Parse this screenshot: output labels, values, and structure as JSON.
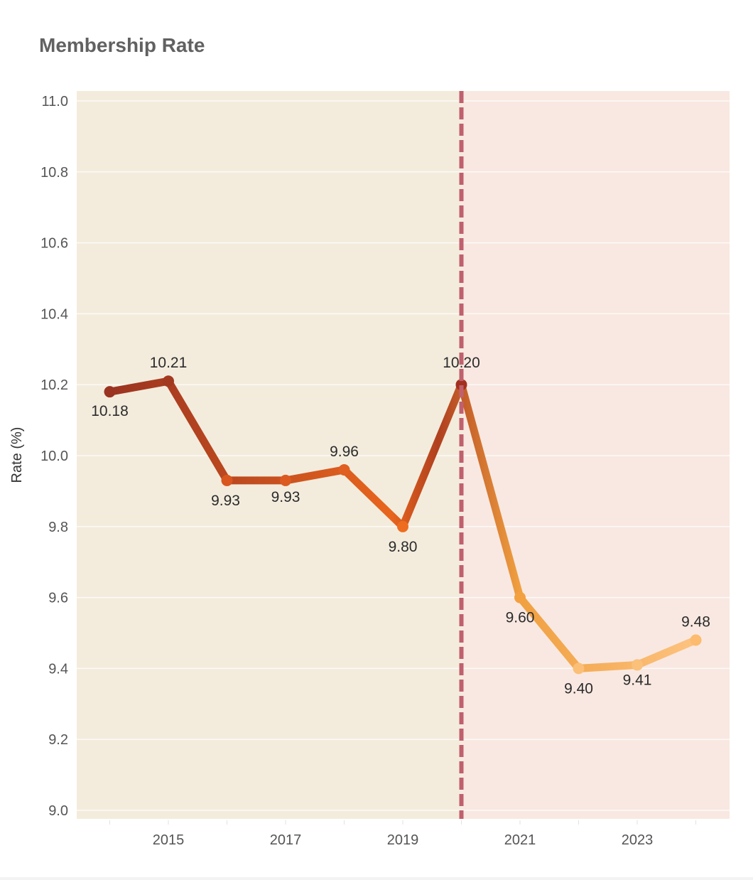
{
  "title": "Membership Rate",
  "chart_data": {
    "type": "line",
    "title": "Membership Rate",
    "xlabel": "",
    "ylabel": "Rate (%)",
    "x": [
      2014,
      2015,
      2016,
      2017,
      2018,
      2019,
      2020,
      2021,
      2022,
      2023,
      2024
    ],
    "series": [
      {
        "name": "Membership Rate",
        "values": [
          10.18,
          10.21,
          9.93,
          9.93,
          9.96,
          9.8,
          10.2,
          9.6,
          9.4,
          9.41,
          9.48
        ]
      }
    ],
    "data_labels": [
      "10.18",
      "10.21",
      "9.93",
      "9.93",
      "9.96",
      "9.80",
      "10.20",
      "9.60",
      "9.40",
      "9.41",
      "9.48"
    ],
    "ylim": [
      9.0,
      11.0
    ],
    "xlim": [
      2013.55,
      2024.6
    ],
    "y_ticks": [
      "9.0",
      "9.2",
      "9.4",
      "9.6",
      "9.8",
      "10.0",
      "10.2",
      "10.4",
      "10.6",
      "10.8",
      "11.0"
    ],
    "x_ticks": [
      "2015",
      "2017",
      "2019",
      "2021",
      "2023"
    ],
    "grid": true,
    "legend": null,
    "annotations": [
      {
        "type": "vline",
        "x": 2020,
        "style": "dashed",
        "color": "#c0606e"
      },
      {
        "type": "region",
        "from": 2013.55,
        "to": 2020,
        "color": "#f3ecdd"
      },
      {
        "type": "region",
        "from": 2020,
        "to": 2024.6,
        "color": "#f8e8e1"
      }
    ]
  },
  "colors": {
    "region_before": "#f3ecdd",
    "region_after": "#f8e8e1",
    "divider": "#c0606e",
    "line_start": "#9a3320",
    "line_mid": "#e8651e",
    "line_end": "#fdc380"
  }
}
